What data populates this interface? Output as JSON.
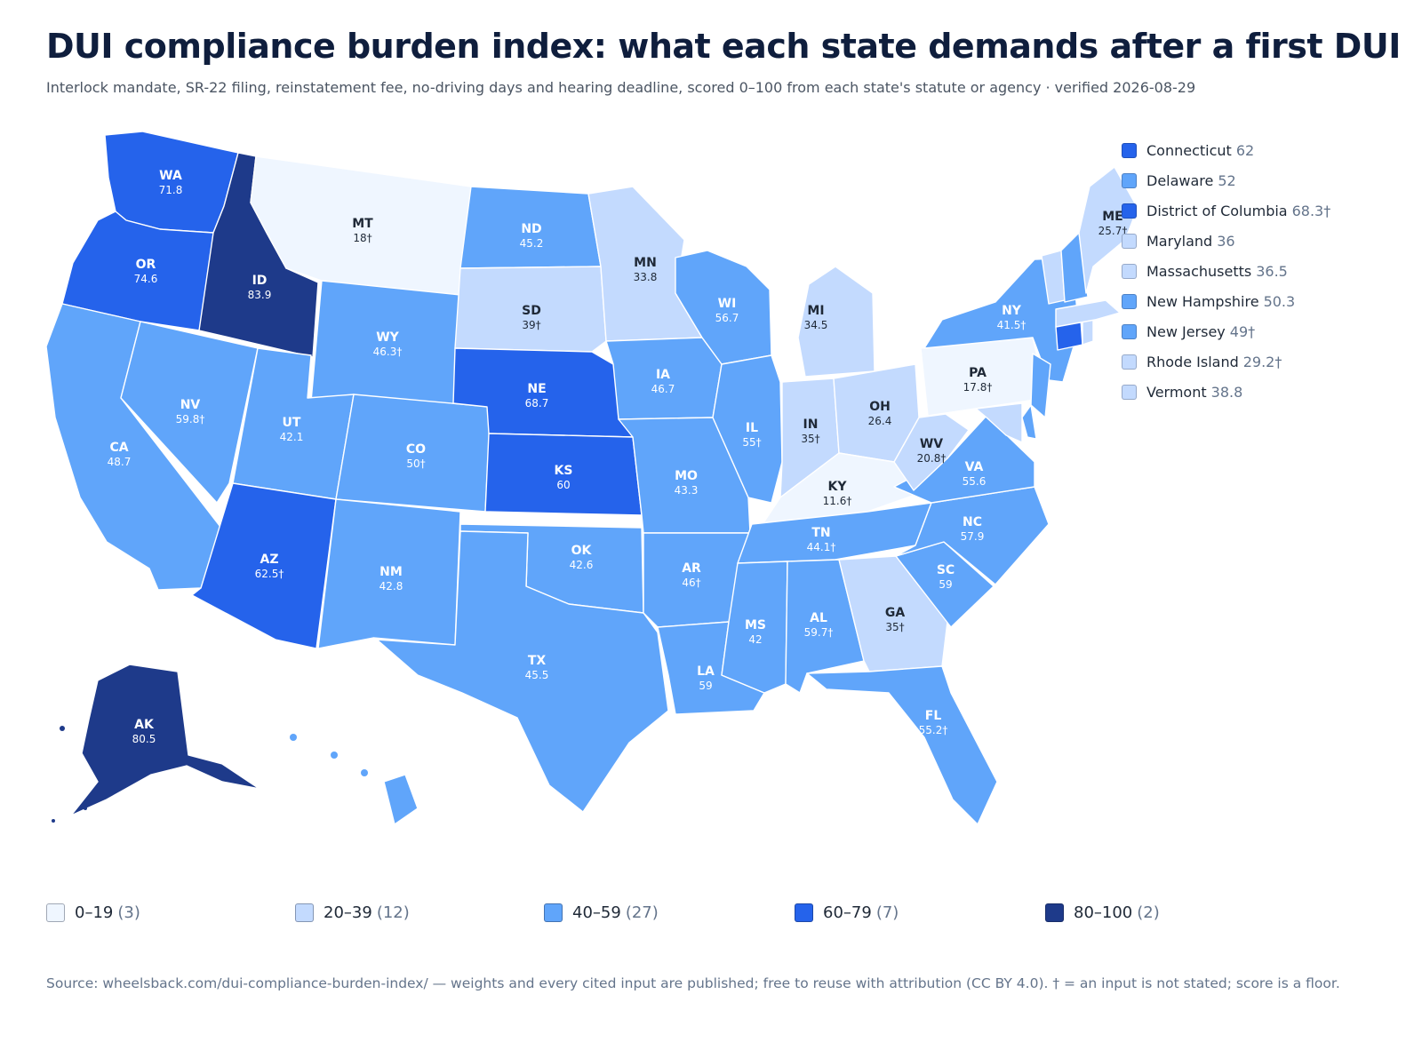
{
  "header": {
    "title": "DUI compliance burden index: what each state demands after a first DUI",
    "subtitle": "Interlock mandate, SR-22 filing, reinstatement fee, no-driving days and hearing deadline, scored 0–100 from each state's statute or agency · verified 2026-08-29"
  },
  "colors": {
    "bin_0_19": "#eff6ff",
    "bin_20_39": "#c3dafe",
    "bin_40_59": "#60a5fa",
    "bin_60_79": "#2563eb",
    "bin_80_100": "#1e3a8a"
  },
  "states": {
    "WA": {
      "abbr": "WA",
      "score": "71.8"
    },
    "OR": {
      "abbr": "OR",
      "score": "74.6"
    },
    "CA": {
      "abbr": "CA",
      "score": "48.7"
    },
    "ID": {
      "abbr": "ID",
      "score": "83.9"
    },
    "NV": {
      "abbr": "NV",
      "score": "59.8†"
    },
    "MT": {
      "abbr": "MT",
      "score": "18†"
    },
    "WY": {
      "abbr": "WY",
      "score": "46.3†"
    },
    "UT": {
      "abbr": "UT",
      "score": "42.1"
    },
    "AZ": {
      "abbr": "AZ",
      "score": "62.5†"
    },
    "CO": {
      "abbr": "CO",
      "score": "50†"
    },
    "NM": {
      "abbr": "NM",
      "score": "42.8"
    },
    "ND": {
      "abbr": "ND",
      "score": "45.2"
    },
    "SD": {
      "abbr": "SD",
      "score": "39†"
    },
    "NE": {
      "abbr": "NE",
      "score": "68.7"
    },
    "KS": {
      "abbr": "KS",
      "score": "60"
    },
    "OK": {
      "abbr": "OK",
      "score": "42.6"
    },
    "TX": {
      "abbr": "TX",
      "score": "45.5"
    },
    "MN": {
      "abbr": "MN",
      "score": "33.8"
    },
    "IA": {
      "abbr": "IA",
      "score": "46.7"
    },
    "MO": {
      "abbr": "MO",
      "score": "43.3"
    },
    "AR": {
      "abbr": "AR",
      "score": "46†"
    },
    "LA": {
      "abbr": "LA",
      "score": "59"
    },
    "WI": {
      "abbr": "WI",
      "score": "56.7"
    },
    "IL": {
      "abbr": "IL",
      "score": "55†"
    },
    "MI": {
      "abbr": "MI",
      "score": "34.5"
    },
    "IN": {
      "abbr": "IN",
      "score": "35†"
    },
    "OH": {
      "abbr": "OH",
      "score": "26.4"
    },
    "KY": {
      "abbr": "KY",
      "score": "11.6†"
    },
    "TN": {
      "abbr": "TN",
      "score": "44.1†"
    },
    "MS": {
      "abbr": "MS",
      "score": "42"
    },
    "AL": {
      "abbr": "AL",
      "score": "59.7†"
    },
    "GA": {
      "abbr": "GA",
      "score": "35†"
    },
    "FL": {
      "abbr": "FL",
      "score": "55.2†"
    },
    "SC": {
      "abbr": "SC",
      "score": "59"
    },
    "NC": {
      "abbr": "NC",
      "score": "57.9"
    },
    "VA": {
      "abbr": "VA",
      "score": "55.6"
    },
    "WV": {
      "abbr": "WV",
      "score": "20.8†"
    },
    "PA": {
      "abbr": "PA",
      "score": "17.8†"
    },
    "NY": {
      "abbr": "NY",
      "score": "41.5†"
    },
    "ME": {
      "abbr": "ME",
      "score": "25.7†"
    },
    "AK": {
      "abbr": "AK",
      "score": "80.5"
    },
    "HI": {
      "abbr": "",
      "score": ""
    }
  },
  "state_legend": [
    {
      "name": "Connecticut",
      "value": "62",
      "bin": "60-79"
    },
    {
      "name": "Delaware",
      "value": "52",
      "bin": "40-59"
    },
    {
      "name": "District of Columbia",
      "value": "68.3†",
      "bin": "60-79"
    },
    {
      "name": "Maryland",
      "value": "36",
      "bin": "20-39"
    },
    {
      "name": "Massachusetts",
      "value": "36.5",
      "bin": "20-39"
    },
    {
      "name": "New Hampshire",
      "value": "50.3",
      "bin": "40-59"
    },
    {
      "name": "New Jersey",
      "value": "49†",
      "bin": "40-59"
    },
    {
      "name": "Rhode Island",
      "value": "29.2†",
      "bin": "20-39"
    },
    {
      "name": "Vermont",
      "value": "38.8",
      "bin": "20-39"
    }
  ],
  "bins": [
    {
      "label": "0–19",
      "count": "(3)",
      "key": "bin_0_19"
    },
    {
      "label": "20–39",
      "count": "(12)",
      "key": "bin_20_39"
    },
    {
      "label": "40–59",
      "count": "(27)",
      "key": "bin_40_59"
    },
    {
      "label": "60–79",
      "count": "(7)",
      "key": "bin_60_79"
    },
    {
      "label": "80–100",
      "count": "(2)",
      "key": "bin_80_100"
    }
  ],
  "source": "Source: wheelsback.com/dui-compliance-burden-index/ — weights and every cited input are published; free to reuse with attribution (CC BY 4.0). † = an input is not stated; score is a floor."
}
